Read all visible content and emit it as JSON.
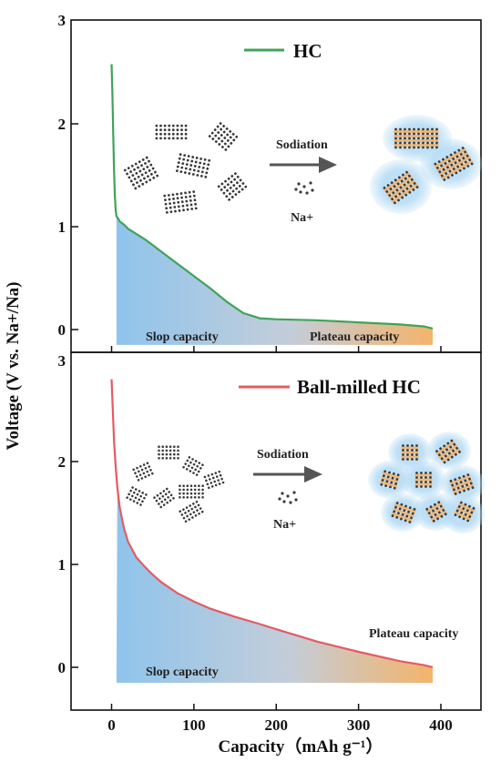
{
  "colors": {
    "hc_line": "#3fa35a",
    "ball_milled_line": "#e35b64",
    "fill_blue": "#8fc4ec",
    "fill_orange": "#f4b36b",
    "dot": "#3a3a3a",
    "halo": "#b7dcf5",
    "arrow": "#555555"
  },
  "axes": {
    "ylabel": "Voltage (V vs. Na+/Na)",
    "xlabel": "Capacity（mAh g⁻¹）",
    "xticks": [
      "0",
      "100",
      "200",
      "300",
      "400"
    ],
    "yticks": [
      "0",
      "1",
      "2",
      "3"
    ]
  },
  "chart_data": [
    {
      "type": "area",
      "panel": "top",
      "legend": "HC",
      "xlim": [
        -50,
        430
      ],
      "ylim": [
        -0.15,
        3.0
      ],
      "series": [
        {
          "name": "HC",
          "x": [
            0,
            1,
            2,
            3,
            4,
            5,
            6,
            8,
            10,
            15,
            20,
            30,
            40,
            50,
            60,
            80,
            100,
            120,
            140,
            160,
            180,
            200,
            250,
            300,
            350,
            380,
            390
          ],
          "y": [
            2.58,
            2.3,
            1.9,
            1.55,
            1.3,
            1.16,
            1.1,
            1.08,
            1.05,
            1.02,
            0.98,
            0.93,
            0.88,
            0.82,
            0.76,
            0.64,
            0.52,
            0.4,
            0.27,
            0.16,
            0.11,
            0.1,
            0.09,
            0.07,
            0.05,
            0.03,
            0.01
          ]
        }
      ],
      "annotations": {
        "left_region": "Slop capacity",
        "right_region": "Plateau capacity",
        "arrow_label": "Sodiation",
        "ion_label": "Na+"
      }
    },
    {
      "type": "area",
      "panel": "bottom",
      "legend": "Ball-milled HC",
      "xlim": [
        -50,
        430
      ],
      "ylim": [
        -0.15,
        3.0
      ],
      "series": [
        {
          "name": "Ball-milled HC",
          "x": [
            0,
            1,
            2,
            3,
            5,
            7,
            10,
            15,
            20,
            30,
            40,
            50,
            60,
            80,
            100,
            120,
            150,
            180,
            200,
            250,
            300,
            350,
            380,
            390
          ],
          "y": [
            2.8,
            2.6,
            2.4,
            2.2,
            1.95,
            1.75,
            1.55,
            1.35,
            1.22,
            1.07,
            0.98,
            0.9,
            0.83,
            0.72,
            0.64,
            0.57,
            0.49,
            0.42,
            0.37,
            0.25,
            0.15,
            0.06,
            0.02,
            0.0
          ]
        }
      ],
      "annotations": {
        "left_region": "Slop capacity",
        "right_region": "Plateau capacity",
        "arrow_label": "Sodiation",
        "ion_label": "Na+"
      }
    }
  ]
}
